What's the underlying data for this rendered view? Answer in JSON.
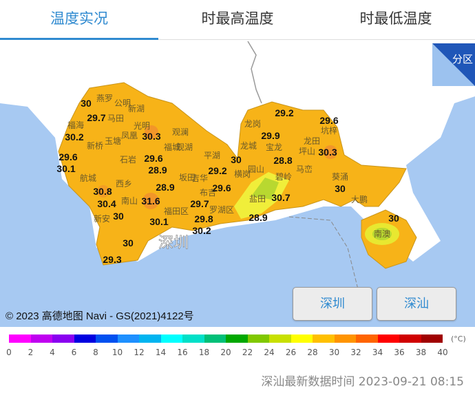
{
  "tabs": [
    {
      "label": "温度实况",
      "active": true
    },
    {
      "label": "时最高温度",
      "active": false
    },
    {
      "label": "时最低温度",
      "active": false
    }
  ],
  "map": {
    "corner_label": "分区",
    "city_label": "深圳",
    "copyright": "© 2023 高德地图 Navi - GS(2021)4122号",
    "temperatures": [
      "30",
      "29.7",
      "30.2",
      "30.3",
      "29.6",
      "30.1",
      "29.6",
      "28.9",
      "29.2",
      "30",
      "28.9",
      "29.6",
      "30.8",
      "30.4",
      "31.6",
      "29.7",
      "30",
      "30.1",
      "29.8",
      "30.2",
      "30",
      "29.3",
      "29.2",
      "29.6",
      "29.9",
      "30.3",
      "28.8",
      "30.7",
      "28.9",
      "30",
      "30"
    ],
    "places": [
      "燕罗",
      "公明",
      "新湖",
      "福海",
      "马田",
      "光明",
      "凤凰",
      "观澜",
      "新桥",
      "玉塘",
      "福城",
      "石岩",
      "观湖",
      "平湖",
      "航城",
      "西乡",
      "南山",
      "新安",
      "坂田",
      "吉华",
      "布吉",
      "横岗",
      "园山",
      "龙岗",
      "龙城",
      "宝龙",
      "坪山",
      "龙田",
      "坑梓",
      "碧岭",
      "马峦",
      "葵涌",
      "盐田",
      "大鹏",
      "南澳",
      "福田区",
      "罗湖区"
    ],
    "buttons": [
      "深圳",
      "深汕"
    ]
  },
  "legend": {
    "colors": [
      "#ff00ff",
      "#c000f0",
      "#8a00f0",
      "#0000e0",
      "#0050f0",
      "#1e90ff",
      "#00b4f0",
      "#00ffff",
      "#00e0c8",
      "#00c078",
      "#00a800",
      "#80c800",
      "#c8e000",
      "#ffff00",
      "#ffc000",
      "#ff9400",
      "#ff6400",
      "#ff0000",
      "#d00000",
      "#a00000"
    ],
    "ticks": [
      "0",
      "2",
      "4",
      "6",
      "8",
      "10",
      "12",
      "14",
      "16",
      "18",
      "20",
      "22",
      "24",
      "26",
      "28",
      "30",
      "32",
      "34",
      "36",
      "38",
      "40"
    ],
    "unit": "(°C)"
  },
  "footer": "深汕最新数据时间 2023-09-21 08:15"
}
